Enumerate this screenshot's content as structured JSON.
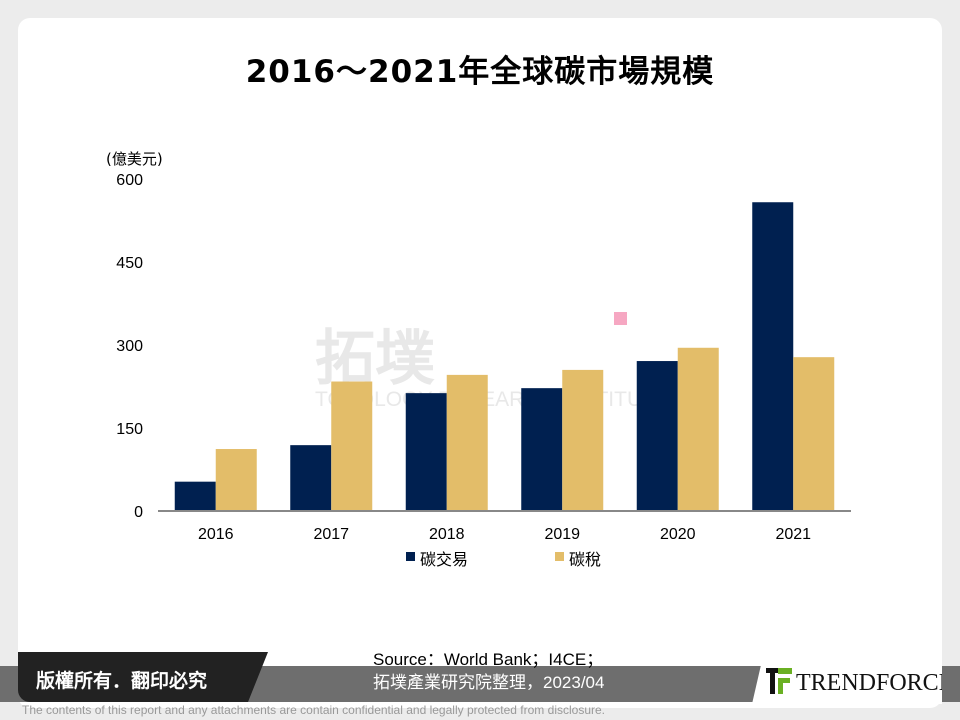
{
  "chart_data": {
    "type": "bar",
    "title": "2016～2021年全球碳市場規模",
    "ylabel": "(億美元)",
    "ylim": [
      0,
      600
    ],
    "yticks": [
      0,
      150,
      300,
      450,
      600
    ],
    "categories": [
      "2016",
      "2017",
      "2018",
      "2019",
      "2020",
      "2021"
    ],
    "series": [
      {
        "name": "碳交易",
        "color": "#002050",
        "values": [
          53,
          119,
          213,
          222,
          271,
          558
        ]
      },
      {
        "name": "碳稅",
        "color": "#e3bd69",
        "values": [
          112,
          234,
          246,
          255,
          295,
          278
        ]
      }
    ],
    "legend": "bottom",
    "grid": false
  },
  "watermark": {
    "cn": "拓墣",
    "en": "TOPOLOGY RESEARCH INSTITUTE"
  },
  "footer": {
    "copyright": "版權所有．翻印必究",
    "source_line1": "Source：World Bank；I4CE；",
    "source_line2": "拓墣產業研究院整理，2023/04",
    "logo": "TRENDFORCE",
    "disclaimer": "The contents of this report and any attachments are contain confidential and legally protected from disclosure."
  }
}
